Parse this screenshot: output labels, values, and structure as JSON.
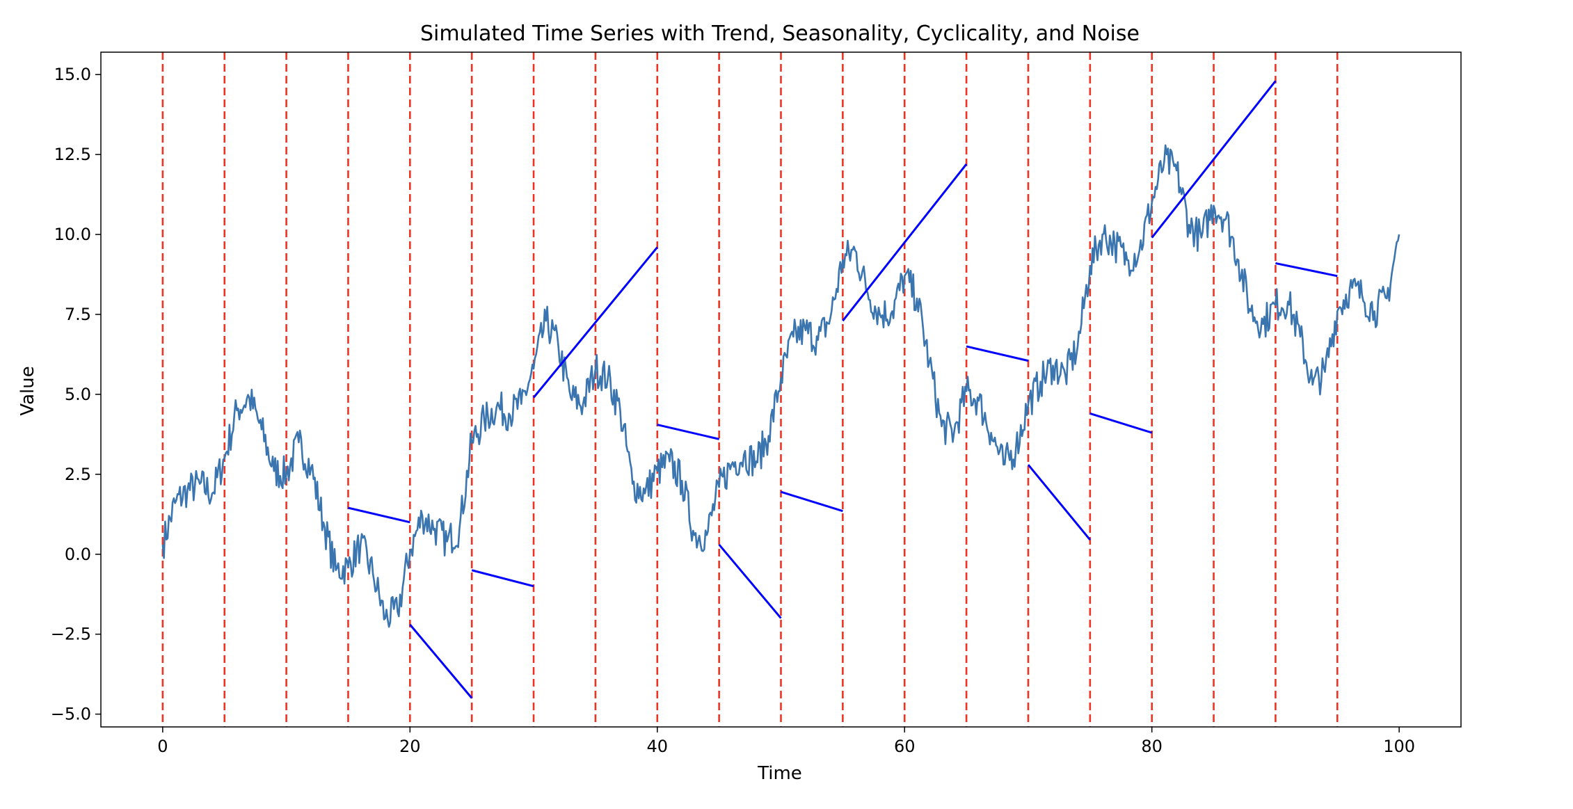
{
  "chart_data": {
    "type": "line",
    "title": "Simulated Time Series with Trend, Seasonality, Cyclicality, and Noise",
    "xlabel": "Time",
    "ylabel": "Value",
    "xlim": [
      -5,
      105
    ],
    "ylim": [
      -5.4,
      15.7
    ],
    "xticks": [
      0,
      20,
      40,
      60,
      80,
      100
    ],
    "xtick_labels": [
      "0",
      "20",
      "40",
      "60",
      "80",
      "100"
    ],
    "yticks": [
      -5.0,
      -2.5,
      0.0,
      2.5,
      5.0,
      7.5,
      10.0,
      12.5,
      15.0
    ],
    "ytick_labels": [
      "−5.0",
      "−2.5",
      "0.0",
      "2.5",
      "5.0",
      "7.5",
      "10.0",
      "12.5",
      "15.0"
    ],
    "grid": false,
    "colors": {
      "series": "#3a75b0",
      "segments": "#0000ff",
      "vlines": "#ee3322"
    },
    "series": {
      "x": [
        0,
        1,
        2,
        3,
        4,
        5,
        6,
        7,
        8,
        9,
        10,
        11,
        12,
        13,
        14,
        15,
        16,
        17,
        18,
        19,
        20,
        21,
        22,
        23,
        24,
        25,
        26,
        27,
        28,
        29,
        30,
        31,
        32,
        33,
        34,
        35,
        36,
        37,
        38,
        39,
        40,
        41,
        42,
        43,
        44,
        45,
        46,
        47,
        48,
        49,
        50,
        51,
        52,
        53,
        54,
        55,
        56,
        57,
        58,
        59,
        60,
        61,
        62,
        63,
        64,
        65,
        66,
        67,
        68,
        69,
        70,
        71,
        72,
        73,
        74,
        75,
        76,
        77,
        78,
        79,
        80,
        81,
        82,
        83,
        84,
        85,
        86,
        87,
        88,
        89,
        90,
        91,
        92,
        93,
        94,
        95,
        96,
        97,
        98,
        99,
        100
      ],
      "y": [
        0.3,
        1.6,
        2.0,
        2.2,
        1.9,
        3.0,
        4.5,
        4.9,
        3.9,
        2.6,
        2.5,
        3.5,
        2.7,
        1.0,
        -0.5,
        -0.4,
        0.3,
        -0.6,
        -2.0,
        -1.8,
        0.1,
        1.2,
        0.8,
        0.4,
        0.8,
        3.5,
        4.2,
        4.6,
        4.4,
        4.7,
        5.8,
        7.3,
        6.5,
        4.9,
        4.7,
        5.8,
        5.5,
        4.5,
        2.2,
        1.9,
        2.6,
        2.9,
        2.3,
        0.6,
        0.6,
        2.1,
        2.8,
        3.1,
        2.9,
        3.7,
        5.5,
        6.8,
        7.0,
        6.7,
        7.4,
        9.2,
        9.5,
        8.2,
        7.5,
        7.6,
        8.7,
        8.0,
        6.0,
        4.0,
        3.8,
        5.1,
        4.8,
        3.8,
        2.8,
        3.3,
        4.7,
        5.4,
        5.9,
        5.6,
        6.5,
        9.0,
        10.0,
        9.7,
        9.2,
        9.5,
        11.0,
        12.3,
        12.0,
        10.3,
        9.9,
        10.9,
        10.5,
        9.2,
        7.6,
        7.2,
        7.8,
        7.9,
        6.8,
        5.3,
        5.7,
        7.6,
        8.3,
        8.1,
        7.6,
        8.0,
        10.0
      ]
    },
    "vlines": [
      0,
      5,
      10,
      15,
      20,
      25,
      30,
      35,
      40,
      45,
      50,
      55,
      60,
      65,
      70,
      75,
      80,
      85,
      90,
      95
    ],
    "segments": [
      {
        "x": [
          15,
          20
        ],
        "y": [
          1.45,
          1.0
        ]
      },
      {
        "x": [
          20,
          25
        ],
        "y": [
          -2.2,
          -4.5
        ]
      },
      {
        "x": [
          25,
          30
        ],
        "y": [
          -0.5,
          -1.0
        ]
      },
      {
        "x": [
          30,
          40
        ],
        "y": [
          4.9,
          9.6
        ]
      },
      {
        "x": [
          40,
          45
        ],
        "y": [
          4.05,
          3.6
        ]
      },
      {
        "x": [
          45,
          50
        ],
        "y": [
          0.3,
          -2.0
        ]
      },
      {
        "x": [
          50,
          55
        ],
        "y": [
          1.95,
          1.35
        ]
      },
      {
        "x": [
          55,
          65
        ],
        "y": [
          7.3,
          12.2
        ]
      },
      {
        "x": [
          65,
          70
        ],
        "y": [
          6.5,
          6.05
        ]
      },
      {
        "x": [
          70,
          75
        ],
        "y": [
          2.8,
          0.45
        ]
      },
      {
        "x": [
          75,
          80
        ],
        "y": [
          4.4,
          3.8
        ]
      },
      {
        "x": [
          80,
          90
        ],
        "y": [
          9.9,
          14.8
        ]
      },
      {
        "x": [
          90,
          95
        ],
        "y": [
          9.1,
          8.7
        ]
      }
    ]
  }
}
